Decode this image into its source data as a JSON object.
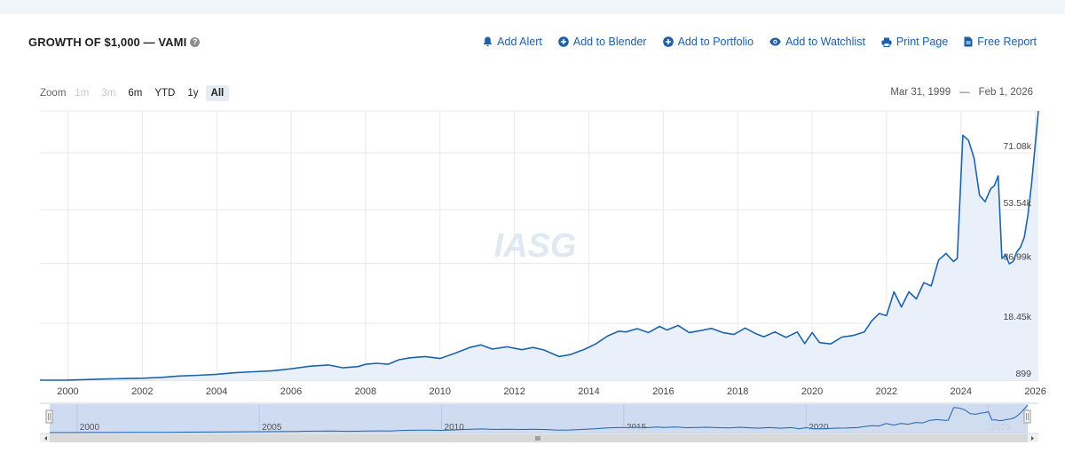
{
  "header": {
    "title": "GROWTH OF $1,000 — VAMI",
    "help_glyph": "?"
  },
  "actions": [
    {
      "label": "Add Alert",
      "icon": "bell-icon"
    },
    {
      "label": "Add to Blender",
      "icon": "plus-circle-icon"
    },
    {
      "label": "Add to Portfolio",
      "icon": "plus-circle-icon"
    },
    {
      "label": "Add to Watchlist",
      "icon": "eye-icon"
    },
    {
      "label": "Print Page",
      "icon": "printer-icon"
    },
    {
      "label": "Free Report",
      "icon": "document-icon"
    }
  ],
  "zoom": {
    "label": "Zoom",
    "options": [
      {
        "label": "1m",
        "state": "disabled"
      },
      {
        "label": "3m",
        "state": "disabled"
      },
      {
        "label": "6m",
        "state": "normal"
      },
      {
        "label": "YTD",
        "state": "normal"
      },
      {
        "label": "1y",
        "state": "normal"
      },
      {
        "label": "All",
        "state": "active"
      }
    ]
  },
  "range": {
    "from": "Mar 31, 1999",
    "separator": "—",
    "to": "Feb 1, 2026"
  },
  "watermark": "IASG",
  "colors": {
    "line": "#1d64ad",
    "area": "#e9f0fa",
    "navigator_mask": "#cfdbf0",
    "accent": "#1d5fa8"
  },
  "chart_data": {
    "type": "area",
    "title": "GROWTH OF $1,000 — VAMI",
    "xlabel": "",
    "ylabel": "",
    "xlim": [
      1999.25,
      2026.08
    ],
    "ylim": [
      899,
      84000
    ],
    "grid": true,
    "y_ticks": [
      "899",
      "18.45k",
      "36.99k",
      "53.54k",
      "71.08k"
    ],
    "y_tick_values": [
      899,
      18450,
      36990,
      53540,
      71080
    ],
    "x_ticks": [
      "2000",
      "2002",
      "2004",
      "2006",
      "2008",
      "2010",
      "2012",
      "2014",
      "2016",
      "2018",
      "2020",
      "2022",
      "2024",
      "2026"
    ],
    "x_tick_values": [
      2000,
      2002,
      2004,
      2006,
      2008,
      2010,
      2012,
      2014,
      2016,
      2018,
      2020,
      2022,
      2024,
      2026
    ],
    "navigator_ticks": [
      "2000",
      "2005",
      "2010",
      "2015",
      "2020",
      "2025"
    ],
    "navigator_tick_values": [
      2000,
      2005,
      2010,
      2015,
      2020,
      2025
    ],
    "series": [
      {
        "name": "VAMI",
        "x": [
          1999.25,
          2000.0,
          2000.5,
          2001.0,
          2001.5,
          2002.0,
          2002.5,
          2003.0,
          2003.5,
          2004.0,
          2004.5,
          2005.0,
          2005.5,
          2006.0,
          2006.5,
          2007.0,
          2007.4,
          2007.8,
          2008.0,
          2008.3,
          2008.6,
          2008.9,
          2009.2,
          2009.6,
          2010.0,
          2010.4,
          2010.8,
          2011.1,
          2011.4,
          2011.8,
          2012.2,
          2012.5,
          2012.8,
          2013.2,
          2013.5,
          2013.9,
          2014.2,
          2014.5,
          2014.8,
          2015.0,
          2015.3,
          2015.6,
          2015.9,
          2016.1,
          2016.4,
          2016.7,
          2017.0,
          2017.3,
          2017.6,
          2017.9,
          2018.2,
          2018.5,
          2018.7,
          2019.0,
          2019.3,
          2019.6,
          2019.8,
          2020.0,
          2020.2,
          2020.5,
          2020.8,
          2021.1,
          2021.4,
          2021.6,
          2021.8,
          2022.0,
          2022.2,
          2022.4,
          2022.6,
          2022.8,
          2023.0,
          2023.2,
          2023.4,
          2023.6,
          2023.8,
          2023.9,
          2024.05,
          2024.2,
          2024.35,
          2024.5,
          2024.65,
          2024.8,
          2024.9,
          2025.0,
          2025.1,
          2025.2,
          2025.3,
          2025.4,
          2025.5,
          2025.6,
          2025.7,
          2025.8,
          2025.9,
          2026.08
        ],
        "values": [
          899,
          920,
          1100,
          1250,
          1400,
          1500,
          1750,
          2200,
          2400,
          2700,
          3200,
          3500,
          3800,
          4400,
          5200,
          5600,
          4700,
          5100,
          5800,
          6100,
          5800,
          7200,
          7800,
          8200,
          7600,
          9200,
          11000,
          11800,
          10500,
          11200,
          10300,
          11000,
          10200,
          8200,
          8800,
          10500,
          12200,
          14500,
          16000,
          15800,
          16800,
          15600,
          17500,
          16400,
          17800,
          15600,
          16200,
          16900,
          15600,
          15000,
          17000,
          15200,
          14300,
          15800,
          14100,
          15800,
          12200,
          15600,
          12500,
          12100,
          14200,
          14700,
          15800,
          19200,
          21500,
          20800,
          28200,
          23500,
          28200,
          26000,
          31000,
          30000,
          38000,
          40000,
          37500,
          38500,
          76500,
          75000,
          69500,
          58000,
          56000,
          60000,
          61000,
          64000,
          38500,
          39500,
          36800,
          37500,
          40500,
          42000,
          45000,
          52000,
          62000,
          84000
        ]
      }
    ]
  }
}
